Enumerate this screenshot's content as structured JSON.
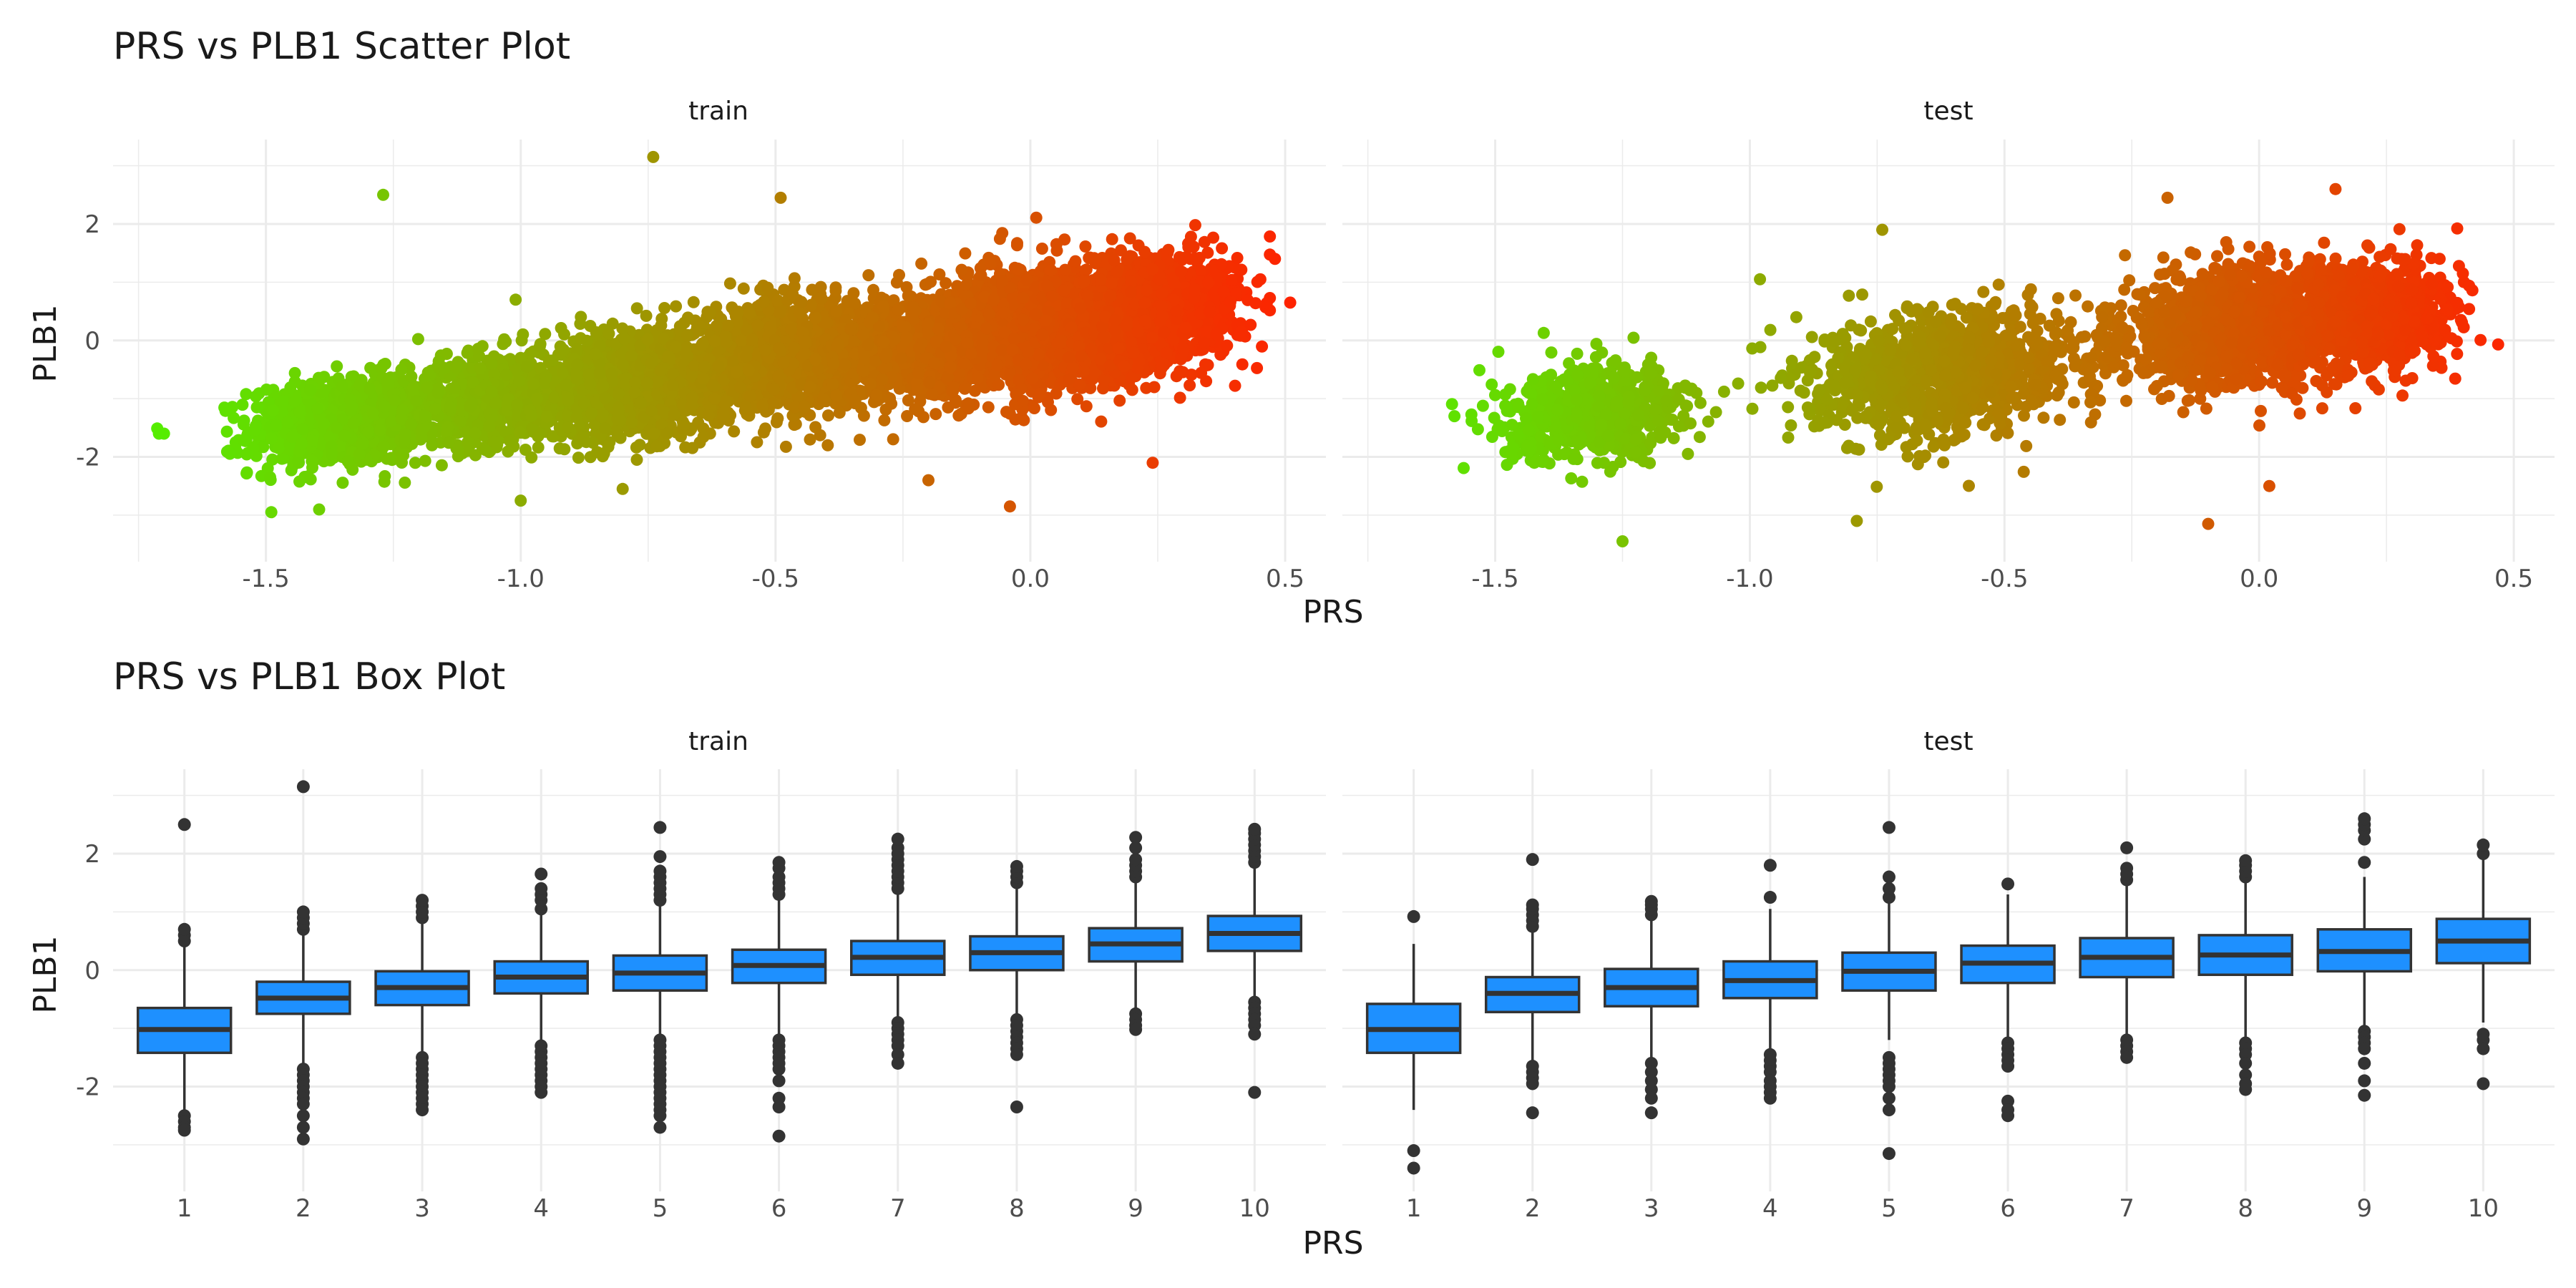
{
  "chart_data": [
    {
      "type": "scatter",
      "title": "PRS vs PLB1 Scatter Plot",
      "xlabel": "PRS",
      "ylabel": "PLB1",
      "facets": [
        "train",
        "test"
      ],
      "xlim": [
        -1.8,
        0.58
      ],
      "ylim": [
        -3.8,
        3.45
      ],
      "x_ticks": [
        -1.5,
        -1.0,
        -0.5,
        0.0,
        0.5
      ],
      "x_tick_labels": [
        "-1.5",
        "-1.0",
        "-0.5",
        "0.0",
        "0.5"
      ],
      "y_ticks": [
        -2,
        0,
        2
      ],
      "y_tick_labels": [
        "-2",
        "0",
        "2"
      ],
      "grid": true,
      "color_scale": {
        "low": "#55ee00",
        "high": "#ff2200",
        "variable": "PRS"
      },
      "clusters": {
        "train": [
          {
            "cx": -1.35,
            "cy": -1.4,
            "sx": 0.09,
            "sy": 0.38,
            "n": 900
          },
          {
            "cx": -1.05,
            "cy": -1.0,
            "sx": 0.09,
            "sy": 0.4,
            "n": 700
          },
          {
            "cx": -0.78,
            "cy": -0.75,
            "sx": 0.09,
            "sy": 0.45,
            "n": 1100
          },
          {
            "cx": -0.5,
            "cy": -0.3,
            "sx": 0.1,
            "sy": 0.45,
            "n": 1200
          },
          {
            "cx": -0.2,
            "cy": -0.05,
            "sx": 0.1,
            "sy": 0.45,
            "n": 1300
          },
          {
            "cx": 0.05,
            "cy": 0.25,
            "sx": 0.09,
            "sy": 0.5,
            "n": 1800
          },
          {
            "cx": 0.25,
            "cy": 0.5,
            "sx": 0.08,
            "sy": 0.45,
            "n": 1200
          }
        ],
        "test": [
          {
            "cx": -1.3,
            "cy": -1.25,
            "sx": 0.09,
            "sy": 0.38,
            "n": 700
          },
          {
            "cx": -0.62,
            "cy": -0.55,
            "sx": 0.12,
            "sy": 0.5,
            "n": 1300
          },
          {
            "cx": -0.05,
            "cy": 0.2,
            "sx": 0.11,
            "sy": 0.5,
            "n": 1300
          },
          {
            "cx": 0.22,
            "cy": 0.4,
            "sx": 0.08,
            "sy": 0.45,
            "n": 900
          }
        ]
      },
      "outliers": {
        "train": [
          [
            -1.27,
            2.5
          ],
          [
            -0.74,
            3.15
          ],
          [
            -0.49,
            2.45
          ],
          [
            -1.01,
            0.7
          ],
          [
            -1.0,
            -2.75
          ],
          [
            -0.04,
            -2.85
          ],
          [
            0.24,
            -2.1
          ],
          [
            0.51,
            0.65
          ],
          [
            0.48,
            1.4
          ],
          [
            -0.8,
            -2.55
          ],
          [
            -0.2,
            -2.4
          ],
          [
            -1.7,
            -1.6
          ],
          [
            -1.71,
            -1.6
          ]
        ],
        "test": [
          [
            -0.74,
            1.9
          ],
          [
            -0.18,
            2.45
          ],
          [
            0.15,
            2.6
          ],
          [
            -1.25,
            -3.45
          ],
          [
            -0.79,
            -3.1
          ],
          [
            -0.1,
            -3.15
          ],
          [
            0.4,
            1.15
          ],
          [
            -1.58,
            -1.3
          ],
          [
            -0.98,
            1.05
          ],
          [
            0.02,
            -2.5
          ]
        ]
      }
    },
    {
      "type": "box",
      "title": "PRS vs PLB1 Box Plot",
      "xlabel": "PRS",
      "ylabel": "PLB1",
      "facets": [
        "train",
        "test"
      ],
      "categories": [
        "1",
        "2",
        "3",
        "4",
        "5",
        "6",
        "7",
        "8",
        "9",
        "10"
      ],
      "ylim": [
        -3.8,
        3.45
      ],
      "y_ticks": [
        -2,
        0,
        2
      ],
      "y_tick_labels": [
        "-2",
        "0",
        "2"
      ],
      "grid": true,
      "fill": "#1e90ff",
      "series": {
        "train": [
          {
            "category": "1",
            "lower_whisker": -2.4,
            "q1": -1.42,
            "median": -1.02,
            "q3": -0.65,
            "upper_whisker": 0.4,
            "outliers": [
              -2.5,
              -2.6,
              -2.7,
              -2.75,
              0.5,
              0.6,
              0.7,
              2.5
            ]
          },
          {
            "category": "2",
            "lower_whisker": -1.6,
            "q1": -0.75,
            "median": -0.48,
            "q3": -0.2,
            "upper_whisker": 0.6,
            "outliers": [
              -1.7,
              -1.8,
              -1.9,
              -2.0,
              -2.1,
              -2.2,
              -2.3,
              -2.5,
              -2.7,
              -2.9,
              0.7,
              0.8,
              0.9,
              1.0,
              3.15
            ]
          },
          {
            "category": "3",
            "lower_whisker": -1.4,
            "q1": -0.6,
            "median": -0.3,
            "q3": -0.02,
            "upper_whisker": 0.8,
            "outliers": [
              -1.5,
              -1.6,
              -1.7,
              -1.8,
              -1.9,
              -2.0,
              -2.1,
              -2.2,
              -2.3,
              -2.4,
              0.9,
              1.0,
              1.1,
              1.2
            ]
          },
          {
            "category": "4",
            "lower_whisker": -1.2,
            "q1": -0.4,
            "median": -0.12,
            "q3": 0.15,
            "upper_whisker": 0.95,
            "outliers": [
              -1.3,
              -1.4,
              -1.5,
              -1.6,
              -1.7,
              -1.8,
              -1.9,
              -2.0,
              -2.1,
              1.05,
              1.2,
              1.3,
              1.4,
              1.65
            ]
          },
          {
            "category": "5",
            "lower_whisker": -1.15,
            "q1": -0.35,
            "median": -0.05,
            "q3": 0.25,
            "upper_whisker": 1.1,
            "outliers": [
              -1.2,
              -1.3,
              -1.4,
              -1.5,
              -1.6,
              -1.7,
              -1.8,
              -1.9,
              -2.0,
              -2.1,
              -2.2,
              -2.3,
              -2.4,
              -2.5,
              -2.7,
              1.2,
              1.3,
              1.4,
              1.5,
              1.6,
              1.7,
              1.95,
              2.45
            ]
          },
          {
            "category": "6",
            "lower_whisker": -1.15,
            "q1": -0.22,
            "median": 0.08,
            "q3": 0.35,
            "upper_whisker": 1.2,
            "outliers": [
              -1.2,
              -1.3,
              -1.4,
              -1.5,
              -1.6,
              -1.7,
              -1.9,
              -2.2,
              -2.35,
              -2.85,
              1.3,
              1.4,
              1.5,
              1.6,
              1.75,
              1.85
            ]
          },
          {
            "category": "7",
            "lower_whisker": -0.85,
            "q1": -0.08,
            "median": 0.22,
            "q3": 0.5,
            "upper_whisker": 1.3,
            "outliers": [
              -0.9,
              -1.0,
              -1.1,
              -1.2,
              -1.3,
              -1.45,
              -1.6,
              1.4,
              1.5,
              1.6,
              1.7,
              1.8,
              1.9,
              2.0,
              2.1,
              2.25
            ]
          },
          {
            "category": "8",
            "lower_whisker": -0.8,
            "q1": 0.0,
            "median": 0.3,
            "q3": 0.58,
            "upper_whisker": 1.4,
            "outliers": [
              -0.85,
              -0.95,
              -1.05,
              -1.15,
              -1.25,
              -1.35,
              -1.45,
              -2.35,
              1.5,
              1.6,
              1.7,
              1.78
            ]
          },
          {
            "category": "9",
            "lower_whisker": -0.7,
            "q1": 0.15,
            "median": 0.45,
            "q3": 0.72,
            "upper_whisker": 1.5,
            "outliers": [
              -0.75,
              -0.85,
              -0.95,
              -1.02,
              1.6,
              1.7,
              1.8,
              1.9,
              2.1,
              2.28
            ]
          },
          {
            "category": "10",
            "lower_whisker": -0.5,
            "q1": 0.33,
            "median": 0.63,
            "q3": 0.93,
            "upper_whisker": 1.75,
            "outliers": [
              -0.55,
              -0.65,
              -0.75,
              -0.85,
              -0.95,
              -1.1,
              -2.1,
              1.85,
              1.95,
              2.05,
              2.15,
              2.25,
              2.35,
              2.42
            ]
          }
        ],
        "test": [
          {
            "category": "1",
            "lower_whisker": -2.4,
            "q1": -1.42,
            "median": -1.02,
            "q3": -0.58,
            "upper_whisker": 0.45,
            "outliers": [
              -3.1,
              -3.4,
              0.92
            ]
          },
          {
            "category": "2",
            "lower_whisker": -1.55,
            "q1": -0.72,
            "median": -0.4,
            "q3": -0.12,
            "upper_whisker": 0.65,
            "outliers": [
              -1.65,
              -1.75,
              -1.85,
              -1.95,
              -2.45,
              0.75,
              0.85,
              0.95,
              1.05,
              1.12,
              1.9
            ]
          },
          {
            "category": "3",
            "lower_whisker": -1.5,
            "q1": -0.62,
            "median": -0.3,
            "q3": 0.02,
            "upper_whisker": 0.85,
            "outliers": [
              -1.6,
              -1.75,
              -1.9,
              -2.05,
              -2.2,
              -2.45,
              0.95,
              1.05,
              1.12,
              1.18
            ]
          },
          {
            "category": "4",
            "lower_whisker": -1.35,
            "q1": -0.48,
            "median": -0.18,
            "q3": 0.15,
            "upper_whisker": 1.05,
            "outliers": [
              -1.45,
              -1.55,
              -1.65,
              -1.75,
              -1.9,
              -2.0,
              -2.1,
              -2.2,
              1.25,
              1.8
            ]
          },
          {
            "category": "5",
            "lower_whisker": -1.2,
            "q1": -0.35,
            "median": -0.02,
            "q3": 0.3,
            "upper_whisker": 1.15,
            "outliers": [
              -1.5,
              -1.6,
              -1.7,
              -1.8,
              -1.9,
              -2.0,
              -2.2,
              -2.4,
              -3.15,
              1.25,
              1.4,
              1.6,
              2.45
            ]
          },
          {
            "category": "6",
            "lower_whisker": -1.15,
            "q1": -0.22,
            "median": 0.12,
            "q3": 0.42,
            "upper_whisker": 1.3,
            "outliers": [
              -1.25,
              -1.35,
              -1.45,
              -1.55,
              -1.65,
              -2.25,
              -2.4,
              -2.5,
              1.48
            ]
          },
          {
            "category": "7",
            "lower_whisker": -1.1,
            "q1": -0.12,
            "median": 0.22,
            "q3": 0.55,
            "upper_whisker": 1.45,
            "outliers": [
              -1.2,
              -1.3,
              -1.4,
              -1.5,
              1.55,
              1.65,
              1.75,
              2.1
            ]
          },
          {
            "category": "8",
            "lower_whisker": -1.15,
            "q1": -0.08,
            "median": 0.26,
            "q3": 0.6,
            "upper_whisker": 1.5,
            "outliers": [
              -1.25,
              -1.35,
              -1.45,
              -1.6,
              -1.8,
              -1.95,
              -2.05,
              1.6,
              1.7,
              1.8,
              1.88
            ]
          },
          {
            "category": "9",
            "lower_whisker": -0.95,
            "q1": -0.02,
            "median": 0.32,
            "q3": 0.7,
            "upper_whisker": 1.6,
            "outliers": [
              -1.05,
              -1.15,
              -1.25,
              -1.35,
              -1.6,
              -1.9,
              -2.15,
              1.85,
              2.25,
              2.4,
              2.5,
              2.6
            ]
          },
          {
            "category": "10",
            "lower_whisker": -0.9,
            "q1": 0.12,
            "median": 0.5,
            "q3": 0.88,
            "upper_whisker": 1.9,
            "outliers": [
              -1.1,
              -1.2,
              -1.35,
              -1.95,
              2.0,
              2.15
            ]
          }
        ]
      }
    }
  ]
}
